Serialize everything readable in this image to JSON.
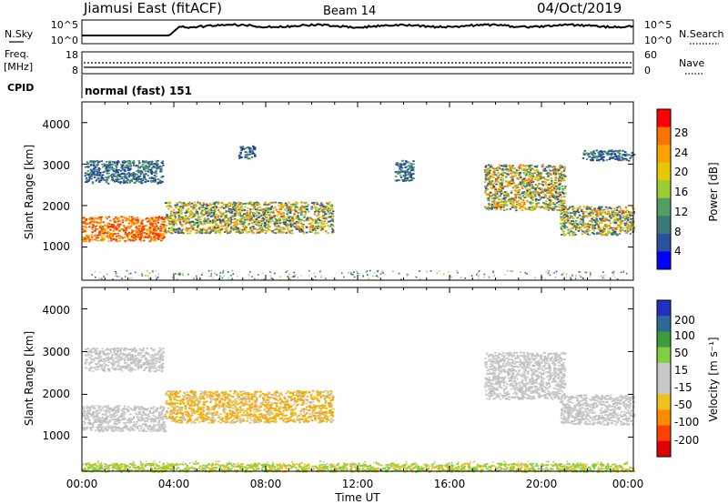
{
  "header": {
    "station": "Jiamusi East (fitACF)",
    "beam": "Beam 14",
    "date": "04/Oct/2019"
  },
  "top_panels": {
    "nsky_label": "N.Sky",
    "nsky_ticks": [
      "10^5",
      "10^0"
    ],
    "nsearch_label": "N.Search",
    "nsearch_ticks": [
      "10^5",
      "10^0"
    ],
    "freq_label": "Freq.",
    "freq_unit": "[MHz]",
    "freq_ticks": [
      "18",
      "8"
    ],
    "nave_label": "Nave",
    "nave_ticks": [
      "60",
      "0"
    ],
    "cpid_label": "CPID",
    "cpid_value": "normal (fast) 151"
  },
  "chart_data": [
    {
      "type": "heatmap",
      "name": "power-panel",
      "ylabel": "Slant Range [km]",
      "ylim": [
        200,
        4500
      ],
      "yticks": [
        "1000",
        "2000",
        "3000",
        "4000"
      ],
      "colorbar_label": "Power [dB]",
      "colorbar_ticks": [
        "28",
        "24",
        "20",
        "16",
        "12",
        "8",
        "4"
      ],
      "colorbar_colors": [
        "#ff0000",
        "#ff7300",
        "#ffa000",
        "#e6c800",
        "#9acd32",
        "#50a060",
        "#3c7878",
        "#2a50a0",
        "#0000ff"
      ],
      "regions": [
        {
          "t0": 0.0,
          "t1": 3.6,
          "r0": 1150,
          "r1": 1750,
          "level": "high"
        },
        {
          "t0": 0.1,
          "t1": 3.5,
          "r0": 2550,
          "r1": 3100,
          "level": "low"
        },
        {
          "t0": 3.6,
          "t1": 10.9,
          "r0": 1350,
          "r1": 2100,
          "level": "mid"
        },
        {
          "t0": 6.8,
          "t1": 7.5,
          "r0": 3150,
          "r1": 3450,
          "level": "low"
        },
        {
          "t0": 13.6,
          "t1": 14.4,
          "r0": 2600,
          "r1": 3100,
          "level": "low"
        },
        {
          "t0": 17.5,
          "t1": 21.0,
          "r0": 1900,
          "r1": 3000,
          "level": "mid"
        },
        {
          "t0": 20.8,
          "t1": 24.0,
          "r0": 1300,
          "r1": 2000,
          "level": "mid"
        },
        {
          "t0": 21.7,
          "t1": 24.0,
          "r0": 3100,
          "r1": 3350,
          "level": "low"
        }
      ]
    },
    {
      "type": "heatmap",
      "name": "velocity-panel",
      "ylabel": "Slant Range [km]",
      "ylim": [
        200,
        4500
      ],
      "yticks": [
        "1000",
        "2000",
        "3000",
        "4000"
      ],
      "xlabel": "Time UT",
      "xticks": [
        "00:00",
        "04:00",
        "08:00",
        "12:00",
        "16:00",
        "20:00",
        "00:00"
      ],
      "colorbar_label": "Velocity [m s⁻¹]",
      "colorbar_ticks": [
        "200",
        "100",
        "50",
        "15",
        "-15",
        "-50",
        "-100",
        "-200"
      ],
      "colorbar_colors": [
        "#2030c0",
        "#2d6a9a",
        "#3a9d3a",
        "#7dd040",
        "#c8c8c8",
        "#c8c8c8",
        "#f0c020",
        "#ff8c00",
        "#ff4000",
        "#e00000"
      ],
      "regions": [
        {
          "t0": 0.0,
          "t1": 3.6,
          "r0": 1150,
          "r1": 1750,
          "level": "ground"
        },
        {
          "t0": 0.1,
          "t1": 3.5,
          "r0": 2550,
          "r1": 3100,
          "level": "ground"
        },
        {
          "t0": 3.6,
          "t1": 10.9,
          "r0": 1350,
          "r1": 2100,
          "level": "neg"
        },
        {
          "t0": 17.5,
          "t1": 21.0,
          "r0": 1900,
          "r1": 3000,
          "level": "ground"
        },
        {
          "t0": 20.8,
          "t1": 24.0,
          "r0": 1300,
          "r1": 2000,
          "level": "ground"
        },
        {
          "t0": 0.0,
          "t1": 24.0,
          "r0": 200,
          "r1": 400,
          "level": "pos"
        }
      ]
    }
  ]
}
